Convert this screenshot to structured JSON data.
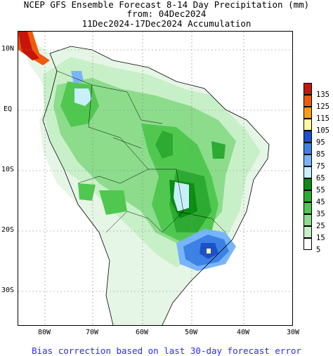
{
  "header": {
    "line1": "NCEP GFS Ensemble Forecast 8-14 Day Precipitation (mm)",
    "line2": "from: 04Dec2024",
    "line3": "11Dec2024-17Dec2024 Accumulation"
  },
  "axes": {
    "lat_labels": [
      "10N",
      "EQ",
      "10S",
      "20S",
      "30S"
    ],
    "lon_labels": [
      "80W",
      "70W",
      "60W",
      "50W",
      "40W",
      "30W"
    ]
  },
  "legend": {
    "items": [
      {
        "label": "135",
        "color": "#c8140a"
      },
      {
        "label": "125",
        "color": "#f05a0a"
      },
      {
        "label": "115",
        "color": "#fa9b1e"
      },
      {
        "label": "105",
        "color": "#fffaa0"
      },
      {
        "label": "95",
        "color": "#1e50c8"
      },
      {
        "label": "85",
        "color": "#3c82e6"
      },
      {
        "label": "75",
        "color": "#78b4fa"
      },
      {
        "label": "65",
        "color": "#c8f0fa"
      },
      {
        "label": "55",
        "color": "#0a8c14"
      },
      {
        "label": "45",
        "color": "#2daa32"
      },
      {
        "label": "35",
        "color": "#50c850"
      },
      {
        "label": "25",
        "color": "#8cdc8c"
      },
      {
        "label": "15",
        "color": "#c8f0c8"
      },
      {
        "label": "5",
        "color": "#ffffff"
      }
    ]
  },
  "footer": {
    "text": "Bias correction based on last 30-day forecast error"
  }
}
